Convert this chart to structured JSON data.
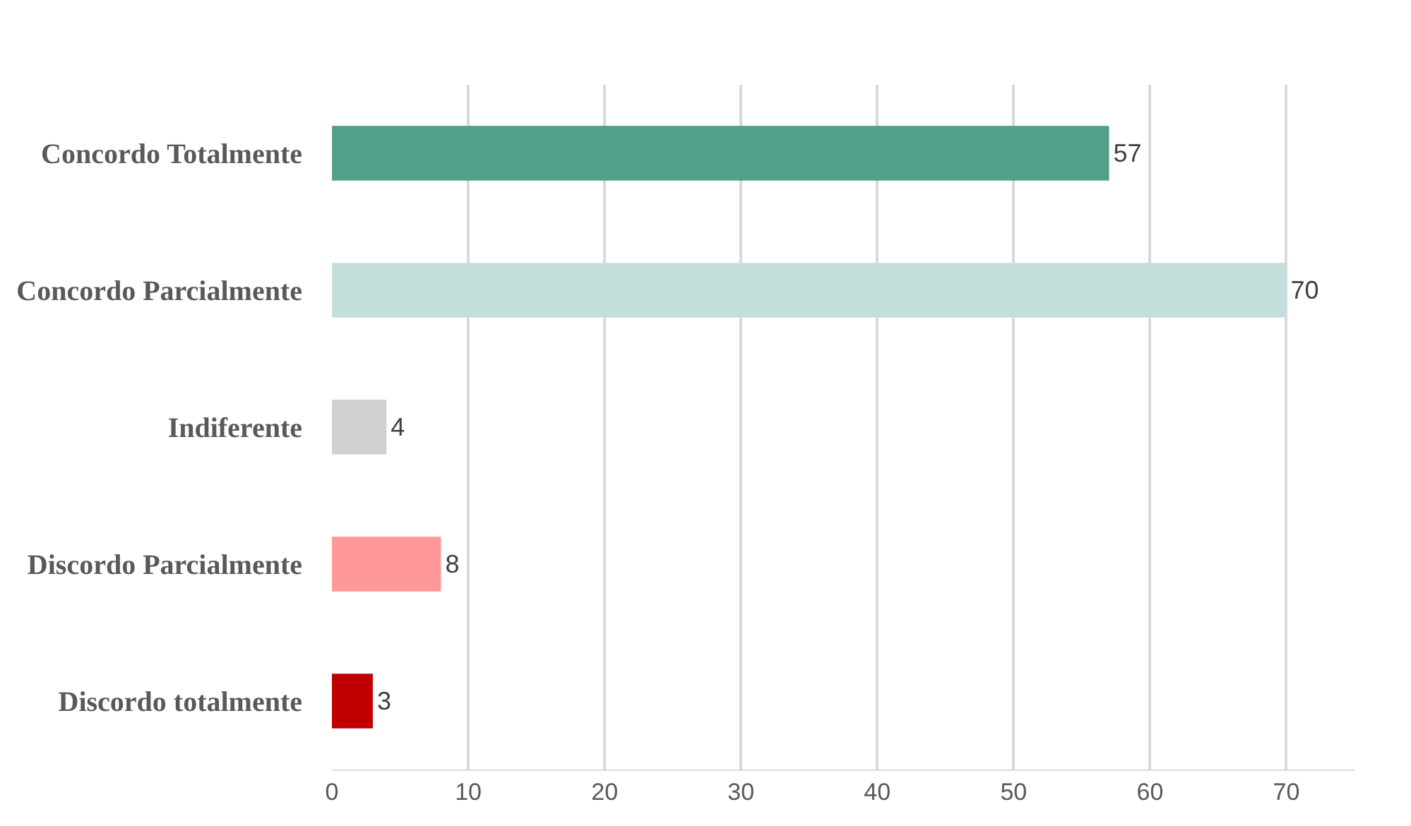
{
  "chart_data": {
    "type": "bar",
    "orientation": "horizontal",
    "categories": [
      "Concordo Totalmente",
      "Concordo Parcialmente",
      "Indiferente",
      "Discordo Parcialmente",
      "Discordo totalmente"
    ],
    "values": [
      57,
      70,
      4,
      8,
      3
    ],
    "colors": [
      "#52a08a",
      "#c3dfdb",
      "#d0d0d0",
      "#ff9999",
      "#c00000"
    ],
    "xlim": [
      0,
      75
    ],
    "xticks": [
      0,
      10,
      20,
      30,
      40,
      50,
      60,
      70
    ],
    "grid": "x",
    "data_labels": true
  }
}
